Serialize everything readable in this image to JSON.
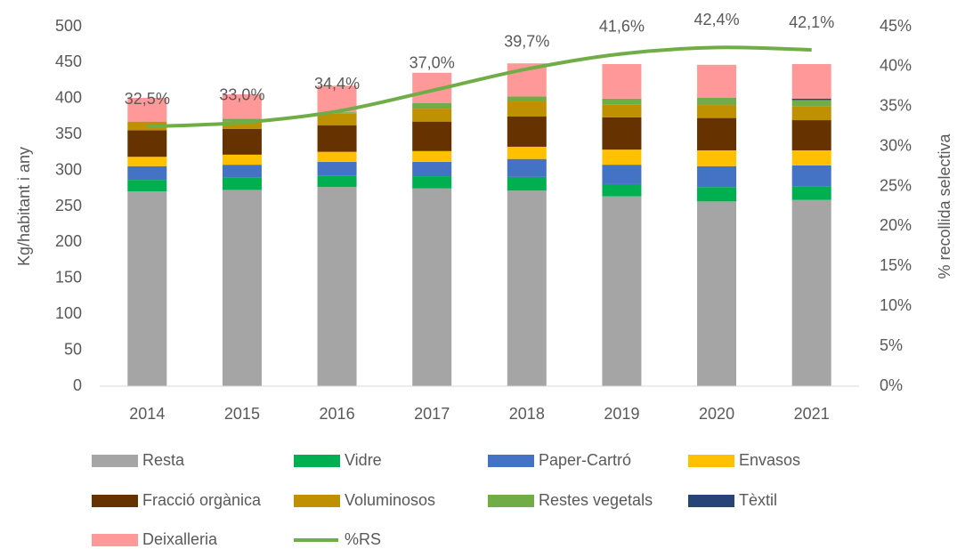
{
  "chart_data": {
    "type": "bar",
    "stacked": true,
    "categories": [
      "2014",
      "2015",
      "2016",
      "2017",
      "2018",
      "2019",
      "2020",
      "2021"
    ],
    "ylabel": "Kg/habitant i any",
    "y2label": "% recollida selectiva",
    "ylim": [
      0,
      500
    ],
    "yticks": [
      0,
      50,
      100,
      150,
      200,
      250,
      300,
      350,
      400,
      450,
      500
    ],
    "y2lim": [
      0,
      45
    ],
    "y2ticks": [
      {
        "value": 0,
        "label": "0%"
      },
      {
        "value": 5,
        "label": "5%"
      },
      {
        "value": 10,
        "label": "10%"
      },
      {
        "value": 15,
        "label": "15%"
      },
      {
        "value": 20,
        "label": "20%"
      },
      {
        "value": 25,
        "label": "25%"
      },
      {
        "value": 30,
        "label": "30%"
      },
      {
        "value": 35,
        "label": "35%"
      },
      {
        "value": 40,
        "label": "40%"
      },
      {
        "value": 45,
        "label": "45%"
      }
    ],
    "grid": false,
    "series": [
      {
        "name": "Resta",
        "color": "#a5a5a5",
        "values": [
          271,
          273,
          277,
          275,
          272,
          264,
          257,
          259
        ]
      },
      {
        "name": "Vidre",
        "color": "#00b050",
        "values": [
          16,
          17,
          16,
          17,
          19,
          17,
          20,
          19
        ]
      },
      {
        "name": "Paper-Cartró",
        "color": "#4472c4",
        "values": [
          19,
          18,
          19,
          20,
          25,
          27,
          29,
          29
        ]
      },
      {
        "name": "Envasos",
        "color": "#ffc000",
        "values": [
          13,
          14,
          14,
          15,
          17,
          21,
          22,
          21
        ]
      },
      {
        "name": "Fracció orgànica",
        "color": "#663300",
        "values": [
          37,
          36,
          37,
          41,
          42,
          45,
          45,
          42
        ]
      },
      {
        "name": "Voluminosos",
        "color": "#bf9000",
        "values": [
          12,
          10,
          16,
          18,
          21,
          18,
          18,
          19
        ]
      },
      {
        "name": "Restes vegetals",
        "color": "#70ad47",
        "values": [
          0,
          4,
          2,
          8,
          7,
          8,
          10,
          9
        ]
      },
      {
        "name": "Tèxtil",
        "color": "#264478",
        "values": [
          0,
          0,
          0,
          0,
          0,
          0,
          0,
          2
        ]
      },
      {
        "name": "Deixalleria",
        "color": "#ff9999",
        "values": [
          33,
          34,
          37,
          42,
          46,
          48,
          46,
          48
        ]
      },
      {
        "name": "%RS",
        "color": "#70ad47",
        "type": "line",
        "axis": "y2",
        "values": [
          32.5,
          33.0,
          34.4,
          37.0,
          39.7,
          41.6,
          42.4,
          42.1
        ],
        "value_labels": [
          "32,5%",
          "33,0%",
          "34,4%",
          "37,0%",
          "39,7%",
          "41,6%",
          "42,4%",
          "42,1%"
        ]
      }
    ]
  }
}
